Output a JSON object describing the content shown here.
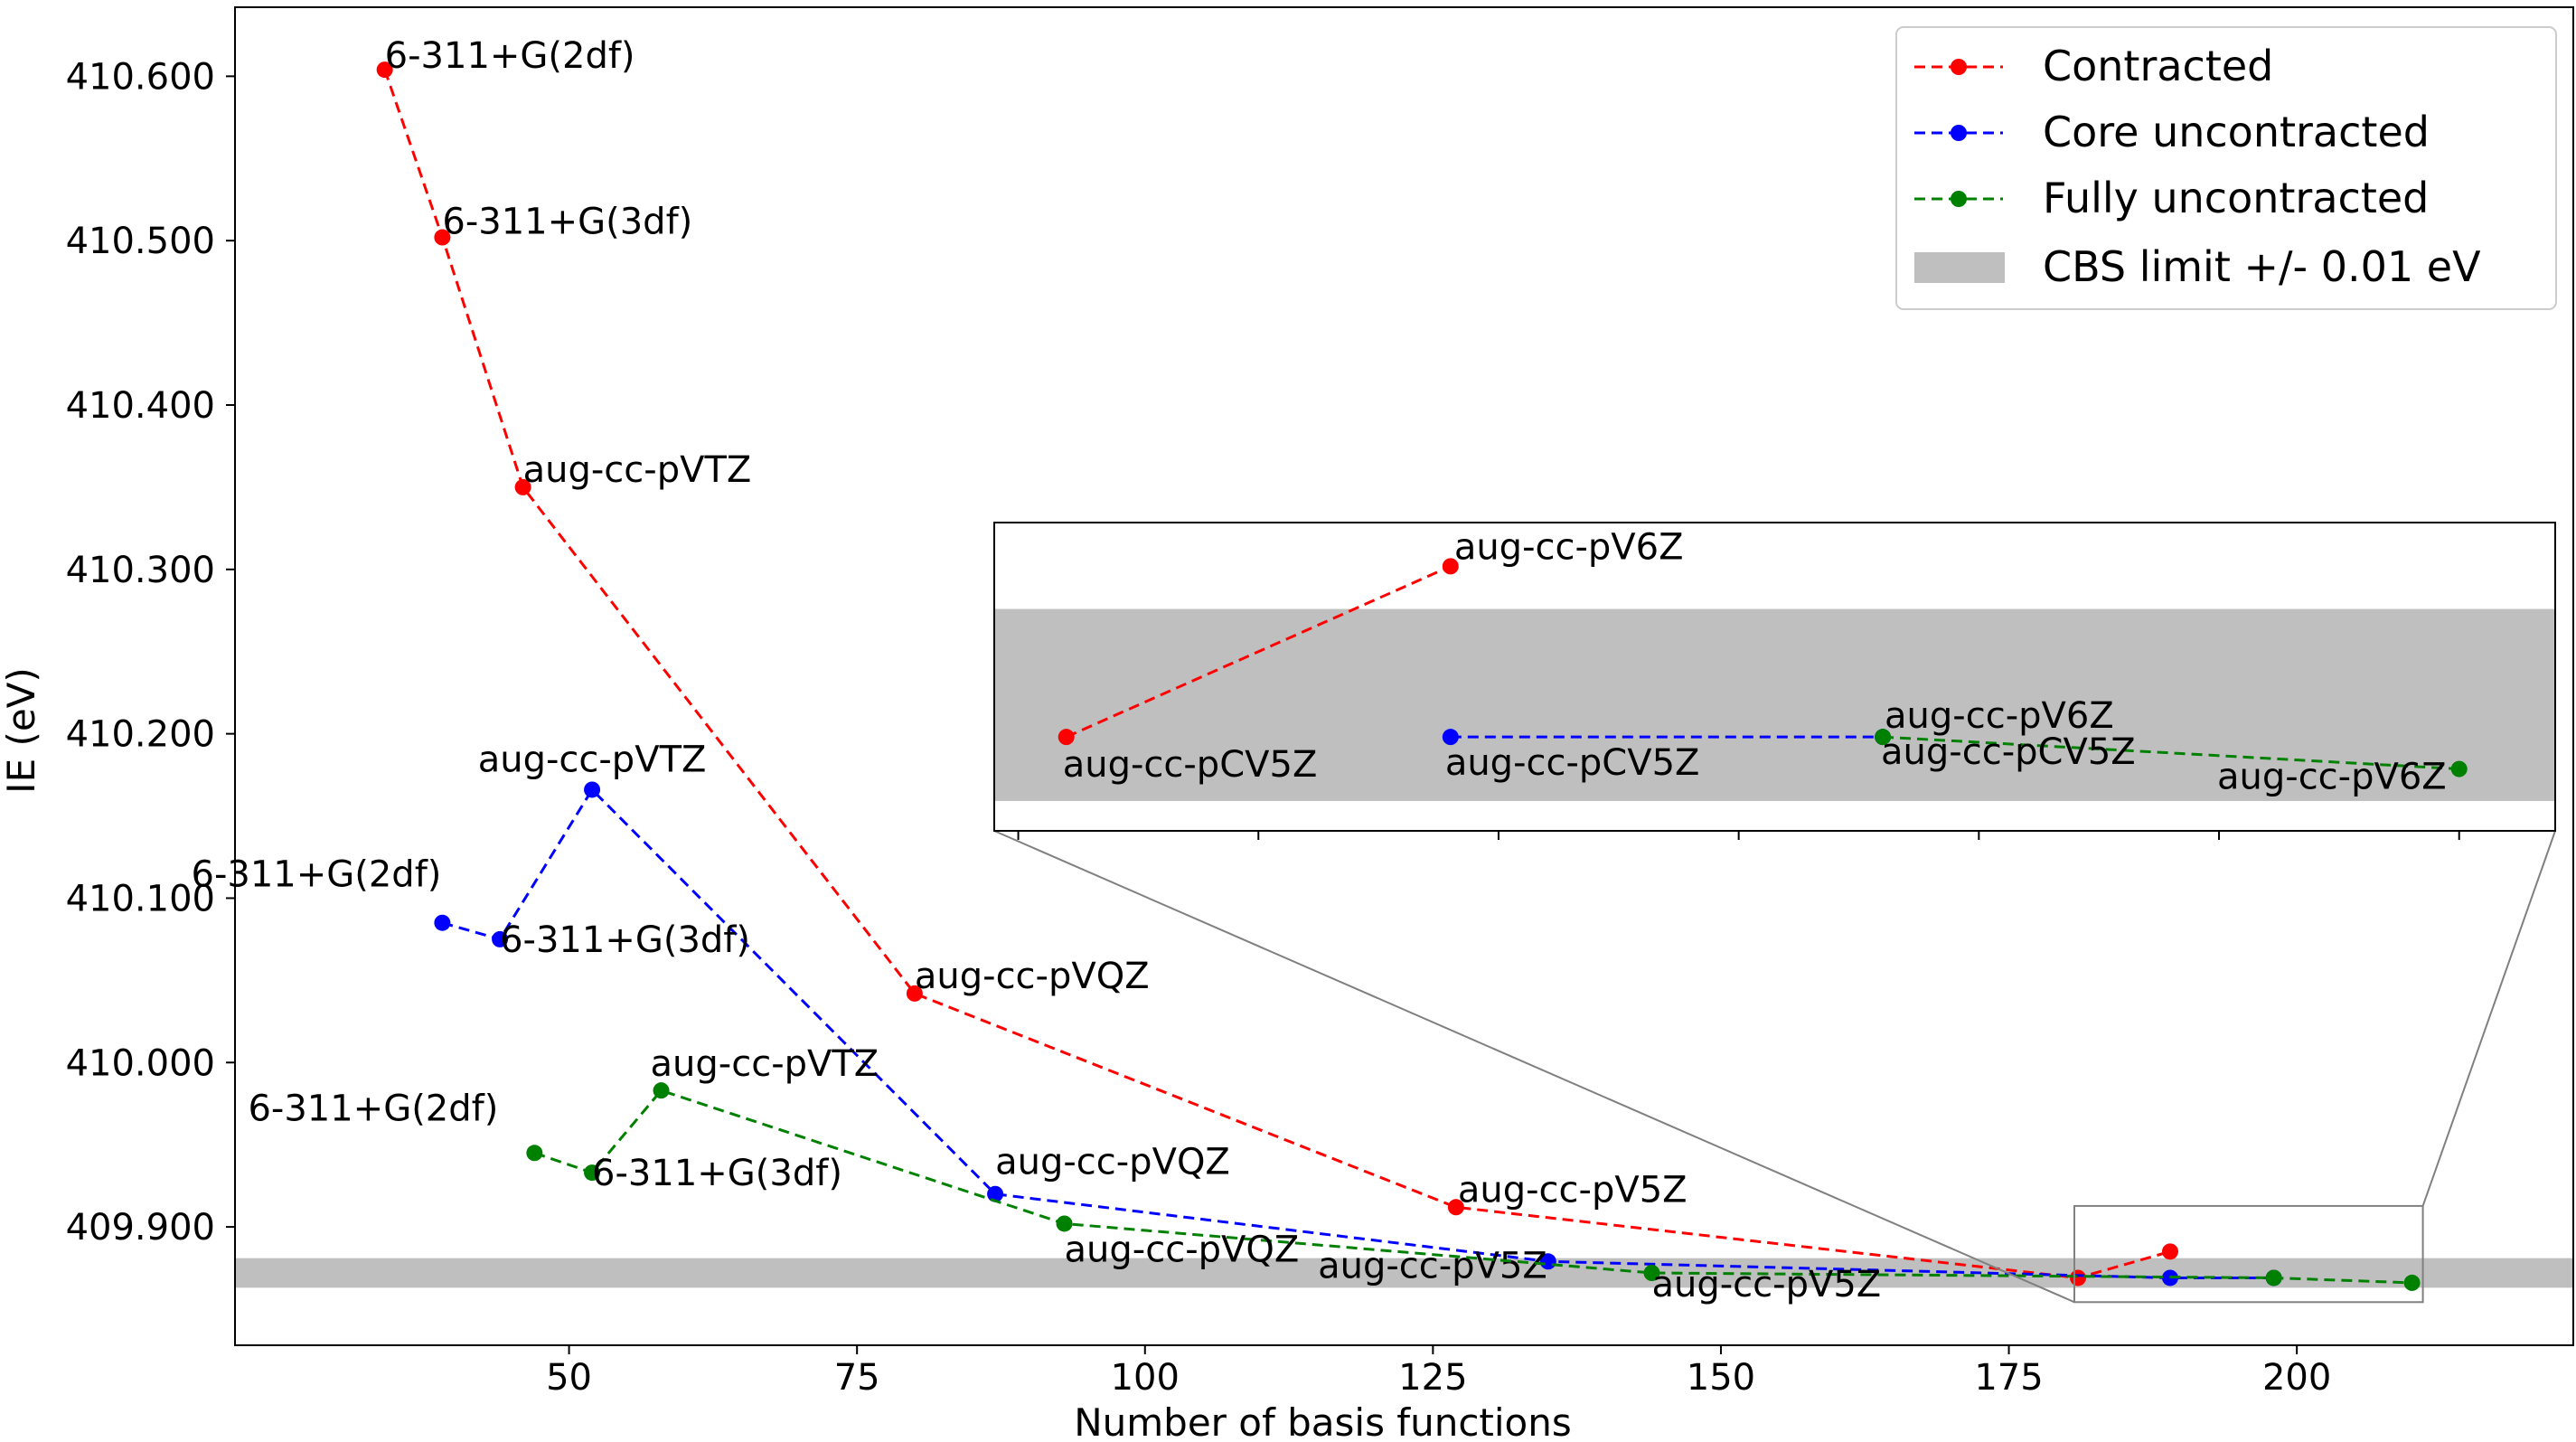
{
  "chart_data": {
    "type": "line",
    "xlabel": "Number of basis functions",
    "ylabel": "IE (eV)",
    "xlim": [
      21,
      224
    ],
    "ylim": [
      409.828,
      410.642
    ],
    "xticks": [
      50,
      75,
      100,
      125,
      150,
      175,
      200
    ],
    "xtick_labels": [
      "50",
      "75",
      "100",
      "125",
      "150",
      "175",
      "200"
    ],
    "yticks": [
      409.9,
      410.0,
      410.1,
      410.2,
      410.3,
      410.4,
      410.5,
      410.6
    ],
    "ytick_labels": [
      "409.900",
      "410.000",
      "410.100",
      "410.200",
      "410.300",
      "410.400",
      "410.500",
      "410.600"
    ],
    "grid": false,
    "legend_position": "top-right",
    "cbs_band": {
      "label": "CBS limit +/- 0.01 eV",
      "y_low": 409.863,
      "y_high": 409.881,
      "color": "#bfbfbf"
    },
    "series": [
      {
        "name": "Contracted",
        "color": "#ff0000",
        "points": [
          {
            "x": 34,
            "y": 410.604,
            "label": "6-311+G(2df)"
          },
          {
            "x": 39,
            "y": 410.502,
            "label": "6-311+G(3df)"
          },
          {
            "x": 46,
            "y": 410.35,
            "label": "aug-cc-pVTZ"
          },
          {
            "x": 80,
            "y": 410.042,
            "label": "aug-cc-pVQZ"
          },
          {
            "x": 127,
            "y": 409.912,
            "label": "aug-cc-pV5Z"
          },
          {
            "x": 181,
            "y": 409.869,
            "label": "aug-cc-pCV5Z"
          },
          {
            "x": 189,
            "y": 409.885,
            "label": "aug-cc-pV6Z"
          }
        ]
      },
      {
        "name": "Core uncontracted",
        "color": "#0000ff",
        "points": [
          {
            "x": 39,
            "y": 410.085,
            "label": "6-311+G(2df)"
          },
          {
            "x": 44,
            "y": 410.075,
            "label": "6-311+G(3df)"
          },
          {
            "x": 52,
            "y": 410.166,
            "label": "aug-cc-pVTZ"
          },
          {
            "x": 87,
            "y": 409.92,
            "label": "aug-cc-pVQZ"
          },
          {
            "x": 135,
            "y": 409.879,
            "label": "aug-cc-pV5Z"
          },
          {
            "x": 189,
            "y": 409.869,
            "label": "aug-cc-pCV5Z"
          },
          {
            "x": 198,
            "y": 409.869,
            "label": "aug-cc-pV6Z"
          }
        ]
      },
      {
        "name": "Fully uncontracted",
        "color": "#008000",
        "points": [
          {
            "x": 47,
            "y": 409.945,
            "label": "6-311+G(2df)"
          },
          {
            "x": 52,
            "y": 409.933,
            "label": "6-311+G(3df)"
          },
          {
            "x": 58,
            "y": 409.983,
            "label": "aug-cc-pVTZ"
          },
          {
            "x": 93,
            "y": 409.902,
            "label": "aug-cc-pVQZ"
          },
          {
            "x": 144,
            "y": 409.872,
            "label": "aug-cc-pV5Z"
          },
          {
            "x": 198,
            "y": 409.869,
            "label": "aug-cc-pCV5Z"
          },
          {
            "x": 210,
            "y": 409.866,
            "label": "aug-cc-pV6Z"
          }
        ]
      }
    ],
    "inset": {
      "xlim": [
        179.5,
        212
      ],
      "ylim": [
        409.8602,
        409.8891
      ],
      "xticks": [
        180,
        185,
        190,
        195,
        200,
        205,
        210
      ],
      "region": {
        "x": [
          181,
          210
        ],
        "y": [
          409.8625,
          409.888
        ]
      }
    }
  }
}
